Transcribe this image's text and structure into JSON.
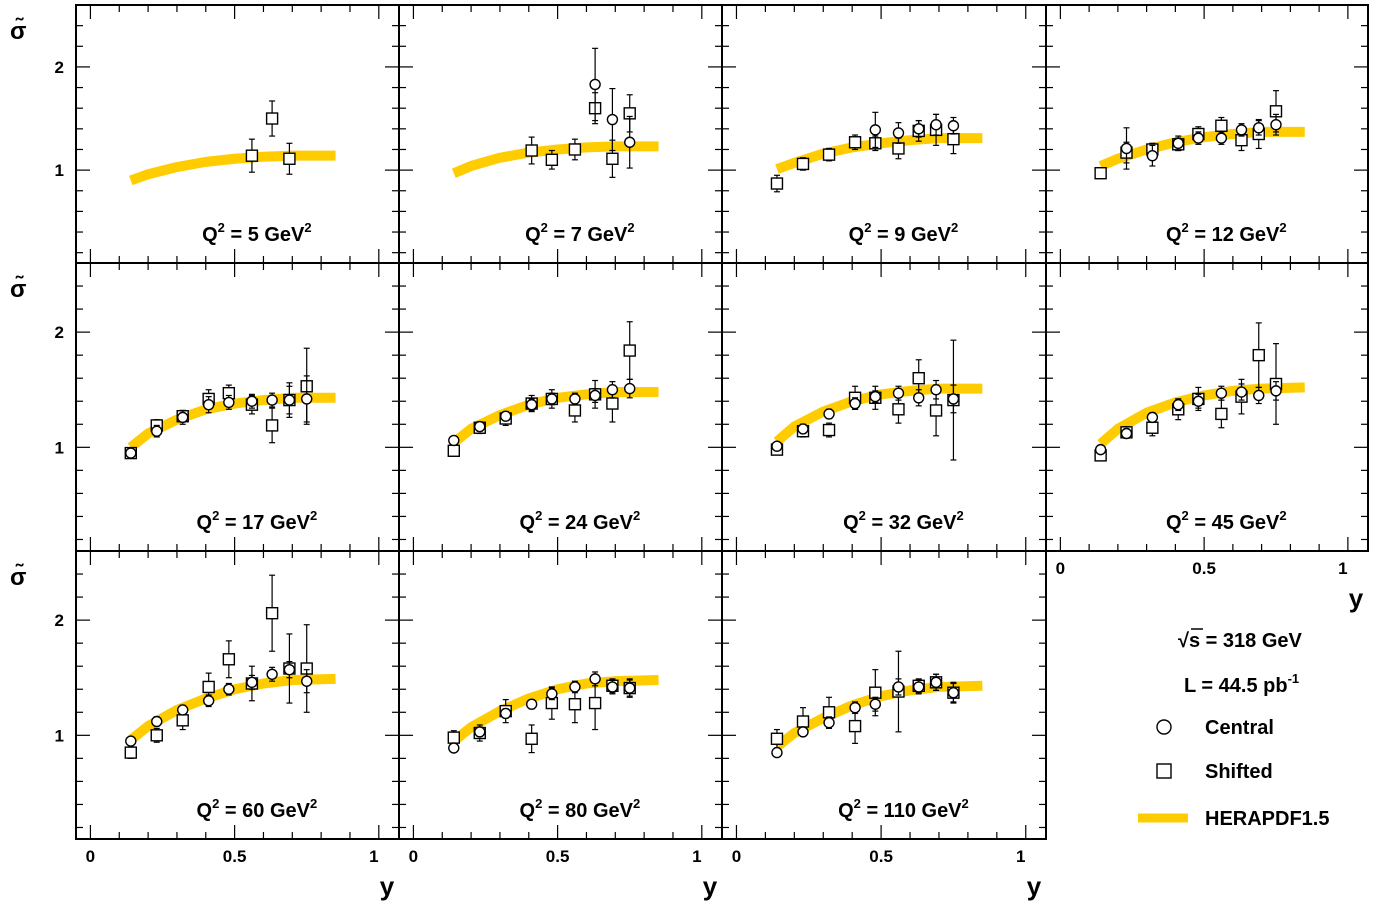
{
  "figure": {
    "band_color": "#ffcc00",
    "x_axis_label": "y",
    "y_axis_label": "σ̃",
    "sqrt_s_text": "s = 318 GeV",
    "lumi_text": "L  = 44.5 pb",
    "lumi_exp": "-1",
    "legend": [
      {
        "key": "central",
        "label": "Central"
      },
      {
        "key": "shifted",
        "label": "Shifted"
      },
      {
        "key": "band",
        "label": "HERAPDF1.5"
      }
    ]
  },
  "chart_data": {
    "type": "scatter",
    "xlim": [
      -0.05,
      1.07
    ],
    "ylim": [
      0.1,
      2.6
    ],
    "x_ticks": [
      {
        "v": 0,
        "label": "0"
      },
      {
        "v": 0.5,
        "label": "0.5"
      },
      {
        "v": 1,
        "label": "1"
      }
    ],
    "y_ticks": [
      {
        "v": 1,
        "label": "1"
      },
      {
        "v": 2,
        "label": "2"
      }
    ],
    "panels": [
      {
        "q2": "5",
        "label_prefix": "Q",
        "label_mid": " = 5 GeV",
        "band": {
          "x": [
            0.14,
            0.2,
            0.3,
            0.4,
            0.5,
            0.6,
            0.7,
            0.85
          ],
          "y": [
            0.9,
            0.96,
            1.03,
            1.08,
            1.11,
            1.13,
            1.14,
            1.14
          ]
        },
        "central": [],
        "shifted": [
          [
            0.56,
            1.14,
            0.16
          ],
          [
            0.63,
            1.5,
            0.17
          ],
          [
            0.69,
            1.11,
            0.15
          ]
        ]
      },
      {
        "q2": "7",
        "label_prefix": "Q",
        "label_mid": " = 7 GeV",
        "band": {
          "x": [
            0.14,
            0.2,
            0.3,
            0.4,
            0.5,
            0.6,
            0.7,
            0.85
          ],
          "y": [
            0.97,
            1.04,
            1.12,
            1.17,
            1.2,
            1.22,
            1.23,
            1.23
          ]
        },
        "central": [
          [
            0.63,
            1.83,
            0.35
          ],
          [
            0.69,
            1.49,
            0.3
          ],
          [
            0.75,
            1.27,
            0.25
          ]
        ],
        "shifted": [
          [
            0.41,
            1.19,
            0.13
          ],
          [
            0.48,
            1.1,
            0.09
          ],
          [
            0.56,
            1.2,
            0.1
          ],
          [
            0.63,
            1.6,
            0.15
          ],
          [
            0.69,
            1.11,
            0.18
          ],
          [
            0.75,
            1.55,
            0.18
          ]
        ]
      },
      {
        "q2": "9",
        "label_prefix": "Q",
        "label_mid": " = 9 GeV",
        "band": {
          "x": [
            0.14,
            0.2,
            0.3,
            0.4,
            0.5,
            0.6,
            0.7,
            0.85
          ],
          "y": [
            1.01,
            1.07,
            1.16,
            1.22,
            1.26,
            1.29,
            1.31,
            1.31
          ]
        },
        "central": [
          [
            0.48,
            1.39,
            0.17
          ],
          [
            0.56,
            1.36,
            0.1
          ],
          [
            0.63,
            1.4,
            0.08
          ],
          [
            0.69,
            1.44,
            0.1
          ],
          [
            0.75,
            1.43,
            0.08
          ]
        ],
        "shifted": [
          [
            0.14,
            0.87,
            0.08
          ],
          [
            0.23,
            1.06,
            0.06
          ],
          [
            0.32,
            1.15,
            0.06
          ],
          [
            0.41,
            1.27,
            0.07
          ],
          [
            0.48,
            1.26,
            0.07
          ],
          [
            0.56,
            1.21,
            0.1
          ],
          [
            0.63,
            1.38,
            0.1
          ],
          [
            0.69,
            1.39,
            0.15
          ],
          [
            0.75,
            1.3,
            0.14
          ]
        ]
      },
      {
        "q2": "12",
        "label_prefix": "Q",
        "label_mid": " = 12 GeV",
        "band": {
          "x": [
            0.14,
            0.2,
            0.3,
            0.4,
            0.5,
            0.6,
            0.7,
            0.85
          ],
          "y": [
            1.04,
            1.11,
            1.2,
            1.27,
            1.32,
            1.35,
            1.37,
            1.37
          ]
        },
        "central": [
          [
            0.23,
            1.21,
            0.2
          ],
          [
            0.32,
            1.14,
            0.1
          ],
          [
            0.41,
            1.26,
            0.07
          ],
          [
            0.48,
            1.31,
            0.06
          ],
          [
            0.56,
            1.31,
            0.06
          ],
          [
            0.63,
            1.39,
            0.06
          ],
          [
            0.69,
            1.41,
            0.07
          ],
          [
            0.75,
            1.44,
            0.1
          ]
        ],
        "shifted": [
          [
            0.14,
            0.97,
            0.05
          ],
          [
            0.23,
            1.17,
            0.1
          ],
          [
            0.32,
            1.2,
            0.06
          ],
          [
            0.41,
            1.25,
            0.06
          ],
          [
            0.48,
            1.35,
            0.07
          ],
          [
            0.56,
            1.43,
            0.08
          ],
          [
            0.63,
            1.29,
            0.1
          ],
          [
            0.69,
            1.35,
            0.14
          ],
          [
            0.75,
            1.57,
            0.2
          ]
        ]
      },
      {
        "q2": "17",
        "label_prefix": "Q",
        "label_mid": " = 17 GeV",
        "band": {
          "x": [
            0.14,
            0.2,
            0.3,
            0.4,
            0.5,
            0.6,
            0.7,
            0.85
          ],
          "y": [
            1.0,
            1.12,
            1.24,
            1.33,
            1.38,
            1.41,
            1.43,
            1.43
          ]
        },
        "central": [
          [
            0.14,
            0.95,
            0.04
          ],
          [
            0.23,
            1.14,
            0.05
          ],
          [
            0.32,
            1.26,
            0.06
          ],
          [
            0.41,
            1.37,
            0.07
          ],
          [
            0.48,
            1.39,
            0.06
          ],
          [
            0.56,
            1.4,
            0.06
          ],
          [
            0.63,
            1.41,
            0.06
          ],
          [
            0.69,
            1.41,
            0.12
          ],
          [
            0.75,
            1.42,
            0.2
          ]
        ],
        "shifted": [
          [
            0.14,
            0.95,
            0.04
          ],
          [
            0.23,
            1.19,
            0.05
          ],
          [
            0.32,
            1.27,
            0.05
          ],
          [
            0.41,
            1.42,
            0.08
          ],
          [
            0.48,
            1.47,
            0.07
          ],
          [
            0.56,
            1.37,
            0.08
          ],
          [
            0.63,
            1.19,
            0.15
          ],
          [
            0.69,
            1.41,
            0.15
          ],
          [
            0.75,
            1.53,
            0.33
          ]
        ]
      },
      {
        "q2": "24",
        "label_prefix": "Q",
        "label_mid": " = 24 GeV",
        "band": {
          "x": [
            0.14,
            0.2,
            0.3,
            0.4,
            0.5,
            0.6,
            0.7,
            0.85
          ],
          "y": [
            1.04,
            1.16,
            1.28,
            1.37,
            1.43,
            1.46,
            1.48,
            1.48
          ]
        },
        "central": [
          [
            0.14,
            1.06,
            0.03
          ],
          [
            0.23,
            1.18,
            0.04
          ],
          [
            0.32,
            1.27,
            0.04
          ],
          [
            0.41,
            1.37,
            0.05
          ],
          [
            0.48,
            1.42,
            0.05
          ],
          [
            0.56,
            1.42,
            0.05
          ],
          [
            0.63,
            1.45,
            0.06
          ],
          [
            0.69,
            1.5,
            0.07
          ],
          [
            0.75,
            1.51,
            0.08
          ]
        ],
        "shifted": [
          [
            0.14,
            0.97,
            0.04
          ],
          [
            0.23,
            1.17,
            0.05
          ],
          [
            0.32,
            1.25,
            0.06
          ],
          [
            0.41,
            1.38,
            0.07
          ],
          [
            0.48,
            1.42,
            0.08
          ],
          [
            0.56,
            1.32,
            0.1
          ],
          [
            0.63,
            1.46,
            0.12
          ],
          [
            0.69,
            1.38,
            0.16
          ],
          [
            0.75,
            1.84,
            0.25
          ]
        ]
      },
      {
        "q2": "32",
        "label_prefix": "Q",
        "label_mid": " = 32 GeV",
        "band": {
          "x": [
            0.14,
            0.2,
            0.3,
            0.4,
            0.5,
            0.6,
            0.7,
            0.85
          ],
          "y": [
            1.05,
            1.18,
            1.31,
            1.4,
            1.46,
            1.49,
            1.51,
            1.51
          ]
        },
        "central": [
          [
            0.14,
            1.01,
            0.03
          ],
          [
            0.23,
            1.16,
            0.04
          ],
          [
            0.32,
            1.29,
            0.04
          ],
          [
            0.41,
            1.38,
            0.05
          ],
          [
            0.48,
            1.44,
            0.05
          ],
          [
            0.56,
            1.47,
            0.06
          ],
          [
            0.63,
            1.43,
            0.07
          ],
          [
            0.69,
            1.5,
            0.08
          ],
          [
            0.75,
            1.42,
            0.12
          ]
        ],
        "shifted": [
          [
            0.14,
            0.98,
            0.04
          ],
          [
            0.23,
            1.14,
            0.05
          ],
          [
            0.32,
            1.15,
            0.06
          ],
          [
            0.41,
            1.43,
            0.1
          ],
          [
            0.48,
            1.43,
            0.1
          ],
          [
            0.56,
            1.33,
            0.12
          ],
          [
            0.63,
            1.6,
            0.16
          ],
          [
            0.69,
            1.32,
            0.22
          ],
          [
            0.75,
            1.41,
            0.52
          ]
        ]
      },
      {
        "q2": "45",
        "label_prefix": "Q",
        "label_mid": " = 45 GeV",
        "band": {
          "x": [
            0.14,
            0.2,
            0.3,
            0.4,
            0.5,
            0.6,
            0.7,
            0.85
          ],
          "y": [
            1.03,
            1.16,
            1.3,
            1.39,
            1.45,
            1.49,
            1.51,
            1.52
          ]
        },
        "central": [
          [
            0.14,
            0.98,
            0.03
          ],
          [
            0.23,
            1.12,
            0.04
          ],
          [
            0.32,
            1.26,
            0.04
          ],
          [
            0.41,
            1.37,
            0.05
          ],
          [
            0.48,
            1.4,
            0.06
          ],
          [
            0.56,
            1.47,
            0.06
          ],
          [
            0.63,
            1.48,
            0.07
          ],
          [
            0.69,
            1.45,
            0.07
          ],
          [
            0.75,
            1.49,
            0.08
          ]
        ],
        "shifted": [
          [
            0.14,
            0.93,
            0.04
          ],
          [
            0.23,
            1.13,
            0.05
          ],
          [
            0.32,
            1.17,
            0.07
          ],
          [
            0.41,
            1.33,
            0.09
          ],
          [
            0.48,
            1.42,
            0.1
          ],
          [
            0.56,
            1.29,
            0.12
          ],
          [
            0.63,
            1.44,
            0.15
          ],
          [
            0.69,
            1.8,
            0.28
          ],
          [
            0.75,
            1.55,
            0.35
          ]
        ]
      },
      {
        "q2": "60",
        "label_prefix": "Q",
        "label_mid": " = 60 GeV",
        "band": {
          "x": [
            0.14,
            0.2,
            0.3,
            0.4,
            0.5,
            0.6,
            0.7,
            0.85
          ],
          "y": [
            0.96,
            1.08,
            1.22,
            1.32,
            1.4,
            1.45,
            1.48,
            1.49
          ]
        },
        "central": [
          [
            0.14,
            0.95,
            0.03
          ],
          [
            0.23,
            1.12,
            0.04
          ],
          [
            0.32,
            1.22,
            0.04
          ],
          [
            0.41,
            1.3,
            0.05
          ],
          [
            0.48,
            1.4,
            0.05
          ],
          [
            0.56,
            1.46,
            0.06
          ],
          [
            0.63,
            1.53,
            0.06
          ],
          [
            0.69,
            1.57,
            0.07
          ],
          [
            0.75,
            1.47,
            0.1
          ]
        ],
        "shifted": [
          [
            0.14,
            0.85,
            0.05
          ],
          [
            0.23,
            1.0,
            0.06
          ],
          [
            0.32,
            1.13,
            0.08
          ],
          [
            0.41,
            1.42,
            0.12
          ],
          [
            0.48,
            1.66,
            0.16
          ],
          [
            0.56,
            1.45,
            0.15
          ],
          [
            0.63,
            2.06,
            0.33
          ],
          [
            0.69,
            1.58,
            0.3
          ],
          [
            0.75,
            1.58,
            0.38
          ]
        ]
      },
      {
        "q2": "80",
        "label_prefix": "Q",
        "label_mid": " = 80 GeV",
        "band": {
          "x": [
            0.14,
            0.2,
            0.3,
            0.4,
            0.5,
            0.6,
            0.7,
            0.85
          ],
          "y": [
            0.95,
            1.07,
            1.21,
            1.32,
            1.4,
            1.45,
            1.47,
            1.48
          ]
        },
        "central": [
          [
            0.14,
            0.89,
            0.03
          ],
          [
            0.23,
            1.03,
            0.04
          ],
          [
            0.32,
            1.19,
            0.04
          ],
          [
            0.41,
            1.27,
            0.04
          ],
          [
            0.48,
            1.36,
            0.05
          ],
          [
            0.56,
            1.42,
            0.05
          ],
          [
            0.63,
            1.49,
            0.06
          ],
          [
            0.69,
            1.42,
            0.06
          ],
          [
            0.75,
            1.41,
            0.07
          ]
        ],
        "shifted": [
          [
            0.14,
            0.98,
            0.06
          ],
          [
            0.23,
            1.02,
            0.07
          ],
          [
            0.32,
            1.21,
            0.1
          ],
          [
            0.41,
            0.97,
            0.12
          ],
          [
            0.48,
            1.28,
            0.14
          ],
          [
            0.56,
            1.27,
            0.16
          ],
          [
            0.63,
            1.28,
            0.23
          ],
          [
            0.69,
            1.43,
            0.06
          ],
          [
            0.75,
            1.41,
            0.08
          ]
        ]
      },
      {
        "q2": "110",
        "label_prefix": "Q",
        "label_mid": " = 110 GeV",
        "band": {
          "x": [
            0.14,
            0.2,
            0.3,
            0.4,
            0.5,
            0.6,
            0.7,
            0.85
          ],
          "y": [
            0.9,
            1.02,
            1.15,
            1.26,
            1.34,
            1.39,
            1.42,
            1.43
          ]
        },
        "central": [
          [
            0.14,
            0.85,
            0.03
          ],
          [
            0.23,
            1.03,
            0.04
          ],
          [
            0.32,
            1.11,
            0.05
          ],
          [
            0.41,
            1.24,
            0.05
          ],
          [
            0.48,
            1.27,
            0.06
          ],
          [
            0.56,
            1.42,
            0.07
          ],
          [
            0.63,
            1.42,
            0.06
          ],
          [
            0.69,
            1.46,
            0.07
          ],
          [
            0.75,
            1.37,
            0.08
          ]
        ],
        "shifted": [
          [
            0.14,
            0.97,
            0.08
          ],
          [
            0.23,
            1.12,
            0.12
          ],
          [
            0.32,
            1.2,
            0.13
          ],
          [
            0.41,
            1.08,
            0.15
          ],
          [
            0.48,
            1.37,
            0.2
          ],
          [
            0.56,
            1.38,
            0.35
          ],
          [
            0.63,
            1.43,
            0.06
          ],
          [
            0.69,
            1.46,
            0.07
          ],
          [
            0.75,
            1.37,
            0.09
          ]
        ]
      }
    ]
  }
}
